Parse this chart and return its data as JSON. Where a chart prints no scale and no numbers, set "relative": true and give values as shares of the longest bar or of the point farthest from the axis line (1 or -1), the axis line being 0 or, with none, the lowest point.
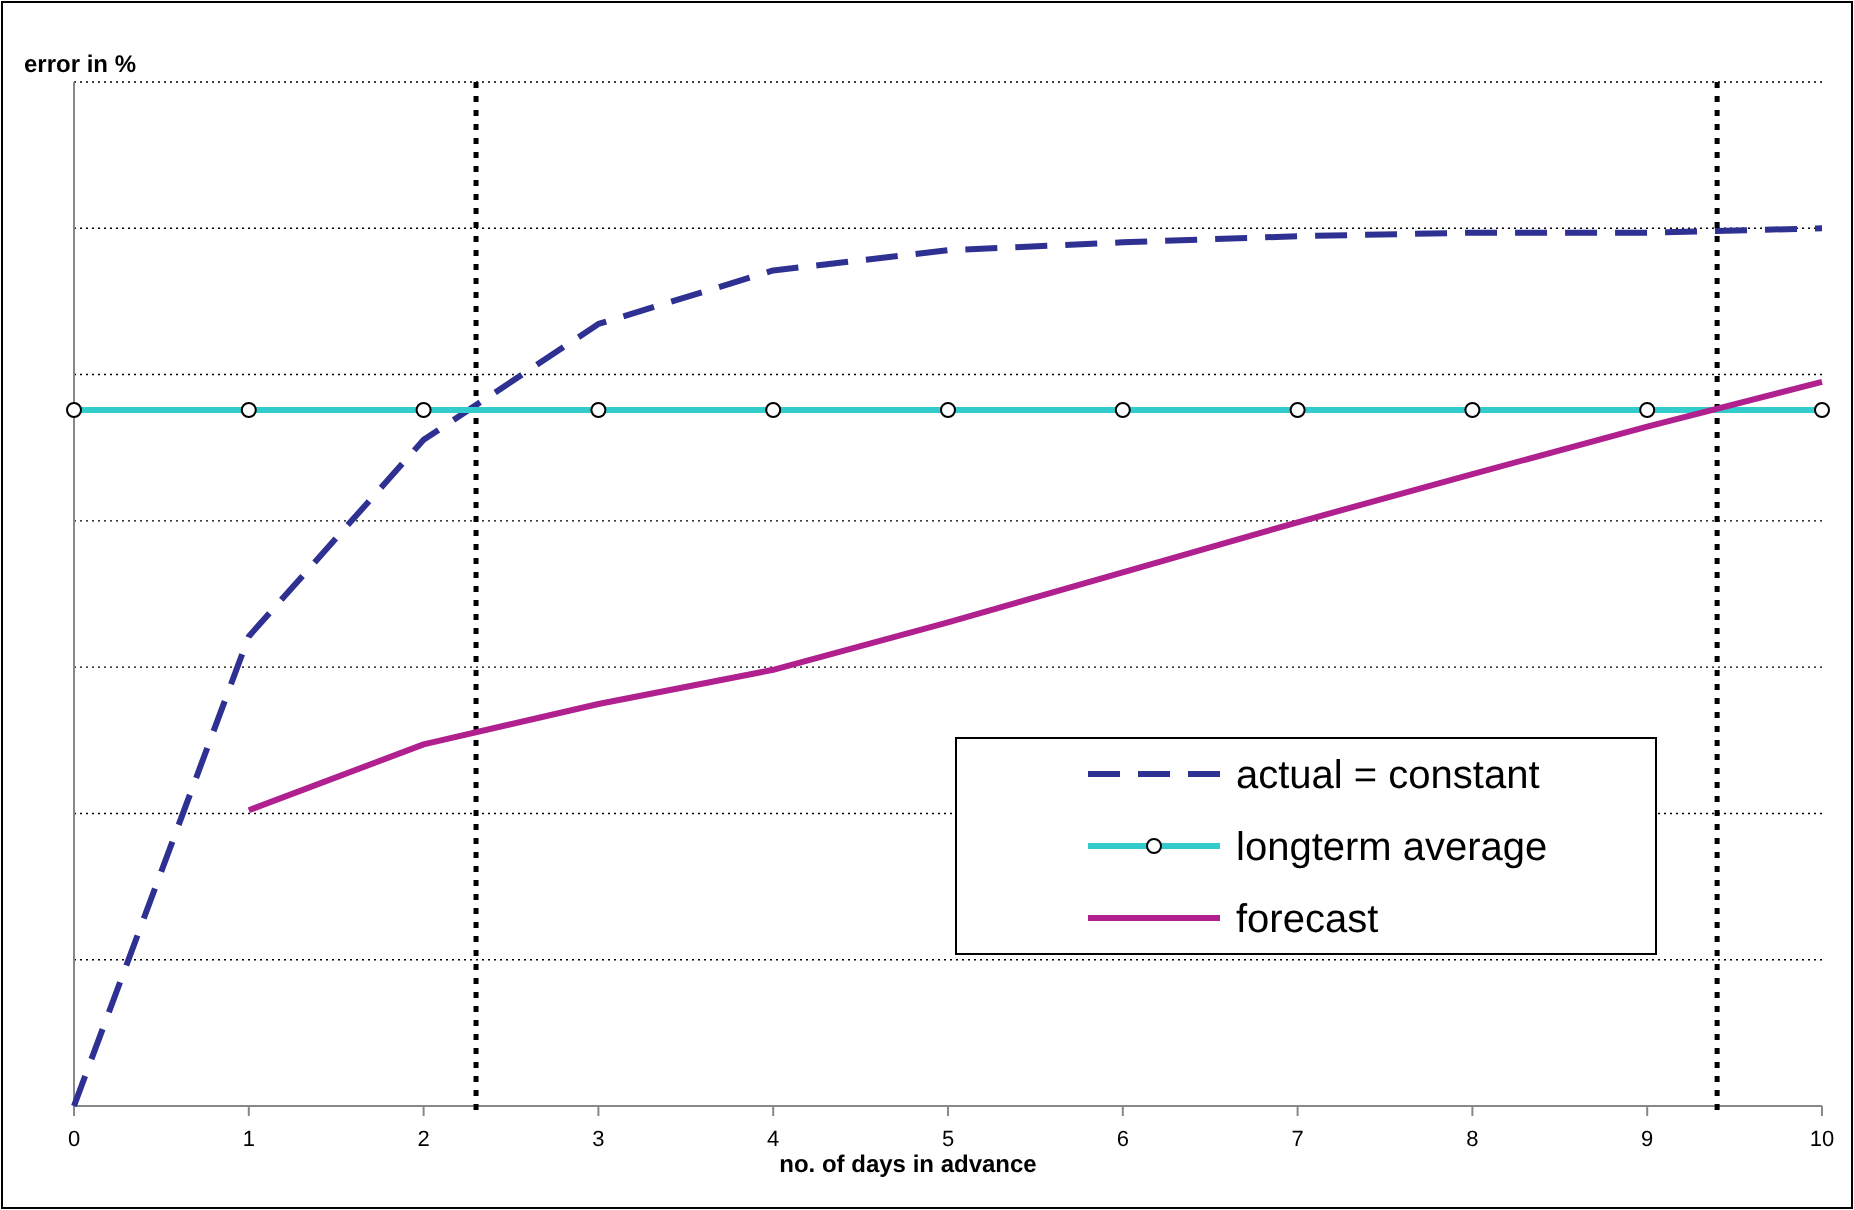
{
  "chart_data": {
    "type": "line",
    "relative": true,
    "xlabel": "no. of days in advance",
    "annotations": [
      "error in %"
    ],
    "xlim": [
      0,
      10
    ],
    "xticks": [
      0,
      1,
      2,
      3,
      4,
      5,
      6,
      7,
      8,
      9,
      10
    ],
    "grid": "y",
    "legend": "bottom right",
    "series": [
      {
        "name": "actual = constant",
        "color": "#2e3192",
        "line_style": "dashed",
        "marker": "none",
        "x": [
          0,
          1,
          2,
          3,
          4,
          5,
          6,
          7,
          8,
          9,
          10
        ],
        "values": [
          0,
          0.535,
          0.759,
          0.891,
          0.952,
          0.975,
          0.984,
          0.991,
          0.995,
          0.995,
          1
        ]
      },
      {
        "name": "longterm average",
        "color": "#33cccc",
        "line_style": "solid",
        "marker": "circle",
        "x": [
          0,
          1,
          2,
          3,
          4,
          5,
          6,
          7,
          8,
          9,
          10
        ],
        "values": [
          0.793,
          0.793,
          0.793,
          0.793,
          0.793,
          0.793,
          0.793,
          0.793,
          0.793,
          0.793,
          0.793
        ]
      },
      {
        "name": "forecast",
        "color": "#b0208f",
        "line_style": "solid",
        "marker": "none",
        "x": [
          1,
          2,
          3,
          4,
          5,
          6,
          7,
          8,
          9,
          10
        ],
        "values": [
          0.337,
          0.412,
          0.458,
          0.497,
          0.551,
          0.608,
          0.665,
          0.72,
          0.774,
          0.825
        ]
      }
    ],
    "ref_lines": [
      {
        "axis": "x",
        "value": 2.3,
        "line_style": "dotted",
        "color": "#000000"
      },
      {
        "axis": "x",
        "value": 9.4,
        "line_style": "dotted",
        "color": "#000000"
      }
    ]
  }
}
